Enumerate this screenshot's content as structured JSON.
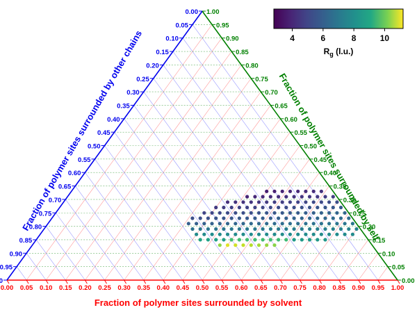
{
  "chart_data": {
    "type": "scatter",
    "subtype": "ternary",
    "axes": {
      "bottom": {
        "label": "Fraction of polymer sites surrounded by solvent",
        "color": "#ff0000",
        "grid_color": "#ff9a9a",
        "ticks": [
          "0.00",
          "0.05",
          "0.10",
          "0.15",
          "0.20",
          "0.25",
          "0.30",
          "0.35",
          "0.40",
          "0.45",
          "0.50",
          "0.55",
          "0.60",
          "0.65",
          "0.70",
          "0.75",
          "0.80",
          "0.85",
          "0.90",
          "0.95",
          "1.00"
        ]
      },
      "left": {
        "label": "Fraction of polymer sites surrounded by other chains",
        "color": "#0000ee",
        "grid_color": "#9a9aff",
        "ticks": [
          "0.00",
          "0.05",
          "0.10",
          "0.15",
          "0.20",
          "0.25",
          "0.30",
          "0.35",
          "0.40",
          "0.45",
          "0.50",
          "0.55",
          "0.60",
          "0.65",
          "0.70",
          "0.75",
          "0.80",
          "0.85",
          "0.90",
          "0.95",
          "1.00"
        ]
      },
      "right": {
        "label": "Fraction of polymer sites surrounded by self",
        "color": "#008000",
        "grid_color": "#66b366",
        "ticks": [
          "0.00",
          "0.05",
          "0.10",
          "0.15",
          "0.20",
          "0.25",
          "0.30",
          "0.35",
          "0.40",
          "0.45",
          "0.50",
          "0.55",
          "0.60",
          "0.65",
          "0.70",
          "0.75",
          "0.80",
          "0.85",
          "0.90",
          "0.95",
          "1.00"
        ]
      }
    },
    "colorbar": {
      "colormap": "viridis",
      "range": [
        2.8,
        11.2
      ],
      "ticks": [
        "4",
        "6",
        "8",
        "10"
      ],
      "label_main": "R",
      "label_sub": "g",
      "label_rest": " (l.u.)"
    },
    "points_note": "each row: [self fraction, solvent fraction start, solvent fraction end, solvent step, Rg at start, Rg at end]",
    "rows": [
      [
        0.33,
        0.5,
        0.63,
        0.02,
        3.5,
        4.0
      ],
      [
        0.31,
        0.46,
        0.7,
        0.02,
        3.7,
        4.4
      ],
      [
        0.29,
        0.42,
        0.75,
        0.02,
        3.9,
        5.0
      ],
      [
        0.27,
        0.4,
        0.8,
        0.02,
        4.2,
        5.4
      ],
      [
        0.25,
        0.38,
        0.82,
        0.02,
        4.5,
        5.8
      ],
      [
        0.23,
        0.36,
        0.84,
        0.02,
        4.8,
        6.0
      ],
      [
        0.21,
        0.36,
        0.86,
        0.02,
        5.3,
        6.3
      ],
      [
        0.19,
        0.38,
        0.86,
        0.02,
        6.0,
        6.6
      ],
      [
        0.17,
        0.4,
        0.8,
        0.02,
        6.8,
        6.8
      ],
      [
        0.15,
        0.42,
        0.74,
        0.02,
        7.6,
        7.2
      ],
      [
        0.13,
        0.48,
        0.62,
        0.02,
        9.8,
        8.5
      ]
    ],
    "grid": true,
    "legend": "none"
  }
}
